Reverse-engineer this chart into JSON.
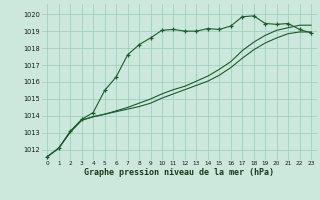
{
  "xlabel": "Graphe pression niveau de la mer (hPa)",
  "background_color": "#cce8dc",
  "grid_color": "#99ccbb",
  "line_color": "#1a5c2a",
  "xlim": [
    -0.5,
    23.5
  ],
  "ylim": [
    1011.4,
    1020.6
  ],
  "yticks": [
    1012,
    1013,
    1014,
    1015,
    1016,
    1017,
    1018,
    1019,
    1020
  ],
  "xticks": [
    0,
    1,
    2,
    3,
    4,
    5,
    6,
    7,
    8,
    9,
    10,
    11,
    12,
    13,
    14,
    15,
    16,
    17,
    18,
    19,
    20,
    21,
    22,
    23
  ],
  "line1_x": [
    0,
    1,
    2,
    3,
    4,
    5,
    6,
    7,
    8,
    9,
    10,
    11,
    12,
    13,
    14,
    15,
    16,
    17,
    18,
    19,
    20,
    21,
    22,
    23
  ],
  "line1_y": [
    1011.6,
    1012.1,
    1013.1,
    1013.8,
    1014.2,
    1015.5,
    1016.3,
    1017.6,
    1018.2,
    1018.6,
    1019.05,
    1019.1,
    1019.0,
    1019.0,
    1019.15,
    1019.1,
    1019.3,
    1019.85,
    1019.9,
    1019.45,
    1019.4,
    1019.45,
    1019.1,
    1018.9
  ],
  "line2_x": [
    0,
    1,
    2,
    3,
    4,
    5,
    6,
    7,
    8,
    9,
    10,
    11,
    12,
    13,
    14,
    15,
    16,
    17,
    18,
    19,
    20,
    21,
    22,
    23
  ],
  "line2_y": [
    1011.6,
    1012.1,
    1013.05,
    1013.75,
    1013.95,
    1014.1,
    1014.25,
    1014.4,
    1014.55,
    1014.75,
    1015.05,
    1015.3,
    1015.55,
    1015.8,
    1016.05,
    1016.4,
    1016.85,
    1017.4,
    1017.9,
    1018.3,
    1018.6,
    1018.85,
    1018.95,
    1018.95
  ],
  "line3_x": [
    0,
    1,
    2,
    3,
    4,
    5,
    6,
    7,
    8,
    9,
    10,
    11,
    12,
    13,
    14,
    15,
    16,
    17,
    18,
    19,
    20,
    21,
    22,
    23
  ],
  "line3_y": [
    1011.6,
    1012.1,
    1013.05,
    1013.75,
    1013.95,
    1014.1,
    1014.3,
    1014.5,
    1014.75,
    1015.0,
    1015.3,
    1015.55,
    1015.75,
    1016.05,
    1016.35,
    1016.75,
    1017.2,
    1017.85,
    1018.35,
    1018.75,
    1019.05,
    1019.2,
    1019.35,
    1019.35
  ]
}
